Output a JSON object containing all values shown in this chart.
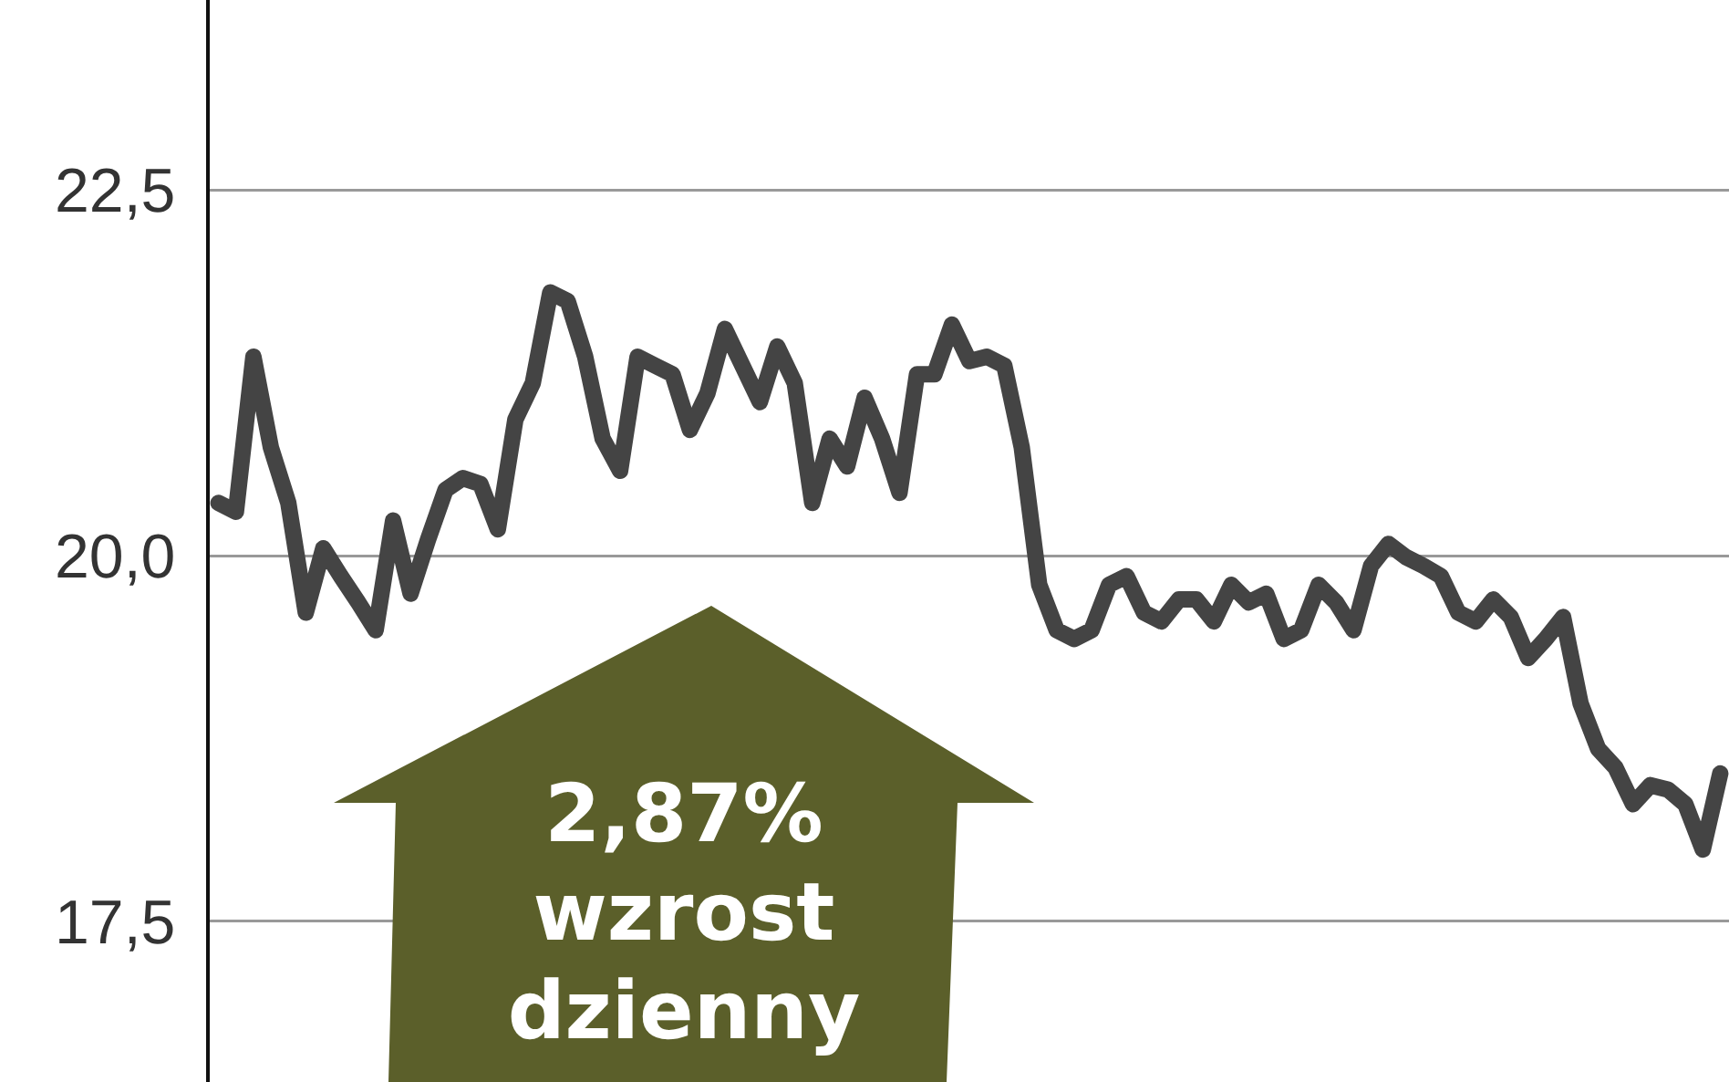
{
  "chart_data": {
    "type": "line",
    "categories": [
      null,
      null,
      null,
      null,
      null,
      null,
      null,
      null,
      null,
      null,
      null,
      null,
      null,
      null,
      null,
      null,
      null,
      null,
      null,
      null,
      null,
      null,
      null,
      null,
      null,
      null,
      null,
      null,
      null,
      null,
      null,
      null,
      null,
      null,
      null,
      null,
      null,
      null,
      null,
      null,
      null,
      null,
      null,
      null,
      null,
      null,
      null,
      null,
      null,
      null,
      null,
      null,
      null,
      null,
      null,
      null,
      null,
      null,
      null,
      null,
      null,
      null,
      null,
      null,
      null,
      null,
      null,
      null,
      null,
      null,
      null,
      null,
      null,
      null,
      null,
      null,
      null,
      null,
      null,
      null,
      null,
      null,
      null,
      null,
      null,
      null,
      null
    ],
    "series": [
      {
        "color": "#444444",
        "values": [
          20.36,
          20.3,
          21.36,
          20.74,
          20.36,
          19.61,
          20.05,
          19.86,
          19.68,
          19.49,
          20.24,
          19.74,
          20.11,
          20.45,
          20.53,
          20.49,
          20.18,
          20.93,
          21.18,
          21.8,
          21.74,
          21.36,
          20.8,
          20.58,
          21.36,
          21.3,
          21.24,
          20.86,
          21.11,
          21.55,
          21.3,
          21.05,
          21.43,
          21.18,
          20.36,
          20.8,
          20.61,
          21.08,
          20.8,
          20.43,
          21.24,
          21.24,
          21.58,
          21.33,
          21.36,
          21.3,
          20.74,
          19.8,
          19.49,
          19.43,
          19.49,
          19.8,
          19.86,
          19.61,
          19.55,
          19.7,
          19.7,
          19.55,
          19.8,
          19.68,
          19.74,
          19.43,
          19.49,
          19.8,
          19.68,
          19.49,
          19.93,
          20.08,
          19.99,
          19.93,
          19.86,
          19.61,
          19.55,
          19.7,
          19.58,
          19.3,
          19.43,
          19.58,
          18.99,
          18.68,
          18.55,
          18.3,
          18.43,
          18.4,
          18.3,
          17.99,
          18.51
        ]
      }
    ],
    "ylim": [
      16.4,
      23.8
    ],
    "yticks": [
      {
        "value": 17.5,
        "label": "17,5"
      },
      {
        "value": 20,
        "label": "20,0"
      },
      {
        "value": 22.5,
        "label": "22,5"
      }
    ],
    "grid": "y",
    "legend": false,
    "line_style": "solid",
    "tick_labels": "y",
    "annotations": [
      "2,87% wzrost dzienny"
    ]
  }
}
